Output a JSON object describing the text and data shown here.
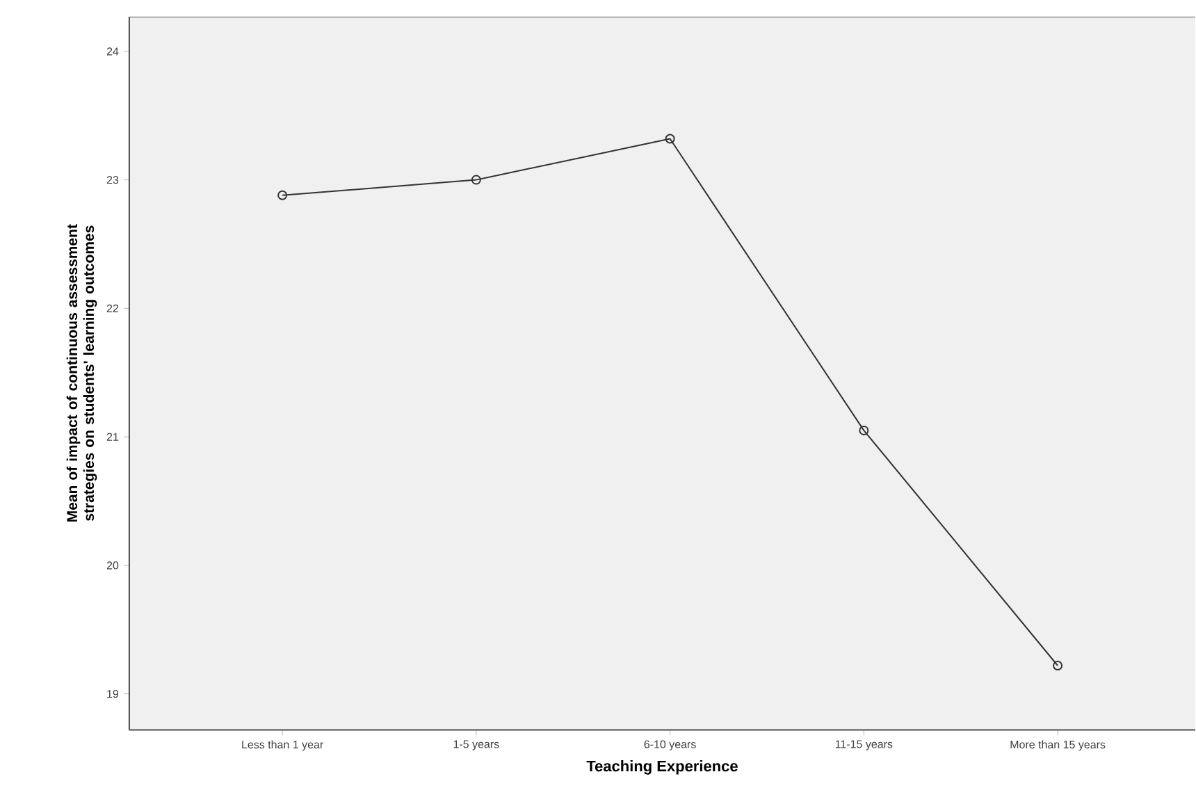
{
  "chart_data": {
    "type": "line",
    "xlabel": "Teaching Experience",
    "ylabel": "Mean of impact of continuous assessment strategies on students' learning outcomes",
    "categories": [
      "Less than 1 year",
      "1-5 years",
      "6-10 years",
      "11-15 years",
      "More than 15 years"
    ],
    "series": [
      {
        "color": "#333333",
        "values": [
          22.88,
          23.0,
          23.32,
          21.05,
          19.22
        ]
      }
    ],
    "ylim": [
      18.72,
      24.27
    ],
    "yticks": [
      19,
      20,
      21,
      22,
      23,
      24
    ],
    "marker": "circle",
    "line_style": "solid",
    "grid": false
  }
}
